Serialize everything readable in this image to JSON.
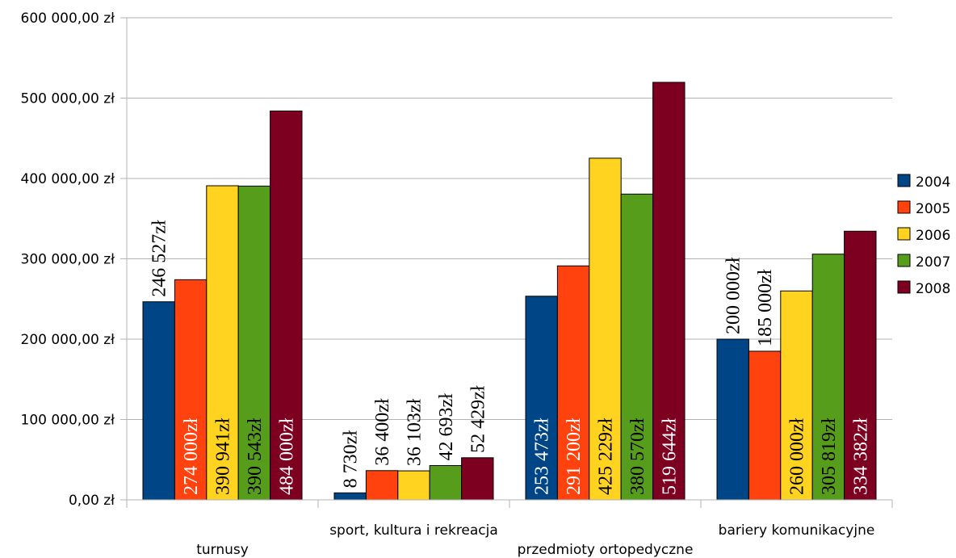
{
  "chart_data": {
    "type": "bar",
    "categories": [
      "turnusy",
      "sport, kultura i rekreacja",
      "przedmioty ortopedyczne",
      "bariery komunikacyjne"
    ],
    "series": [
      {
        "name": "2004",
        "color": "#004586",
        "values": [
          246527,
          8730,
          253473,
          200000
        ],
        "labels": [
          "246 527zł",
          "8 730zł",
          "253 473zł",
          "200 000zł"
        ]
      },
      {
        "name": "2005",
        "color": "#ff420e",
        "values": [
          274000,
          36400,
          291200,
          185000
        ],
        "labels": [
          "274 000zł",
          "36 400zł",
          "291 200zł",
          "185 000zł"
        ]
      },
      {
        "name": "2006",
        "color": "#ffd320",
        "values": [
          390941,
          36103,
          425229,
          260000
        ],
        "labels": [
          "390 941zł",
          "36 103zł",
          "425 229zł",
          "260 000zł"
        ]
      },
      {
        "name": "2007",
        "color": "#579d1c",
        "values": [
          390543,
          42693,
          380570,
          305819
        ],
        "labels": [
          "390 543zł",
          "42 693zł",
          "380 570zł",
          "305 819zł"
        ]
      },
      {
        "name": "2008",
        "color": "#7e0021",
        "values": [
          484000,
          52429,
          519644,
          334382
        ],
        "labels": [
          "484 000zł",
          "52 429zł",
          "519 644zł",
          "334 382zł"
        ]
      }
    ],
    "yticks": [
      {
        "value": 0,
        "label": "0,00 zł"
      },
      {
        "value": 100000,
        "label": "100 000,00 zł"
      },
      {
        "value": 200000,
        "label": "200 000,00 zł"
      },
      {
        "value": 300000,
        "label": "300 000,00 zł"
      },
      {
        "value": 400000,
        "label": "400 000,00 zł"
      },
      {
        "value": 500000,
        "label": "500 000,00 zł"
      },
      {
        "value": 600000,
        "label": "600 000,00 zł"
      }
    ],
    "ylim": [
      0,
      600000
    ],
    "grid": true,
    "legend_position": "right",
    "title": "",
    "xlabel": "",
    "ylabel": ""
  }
}
